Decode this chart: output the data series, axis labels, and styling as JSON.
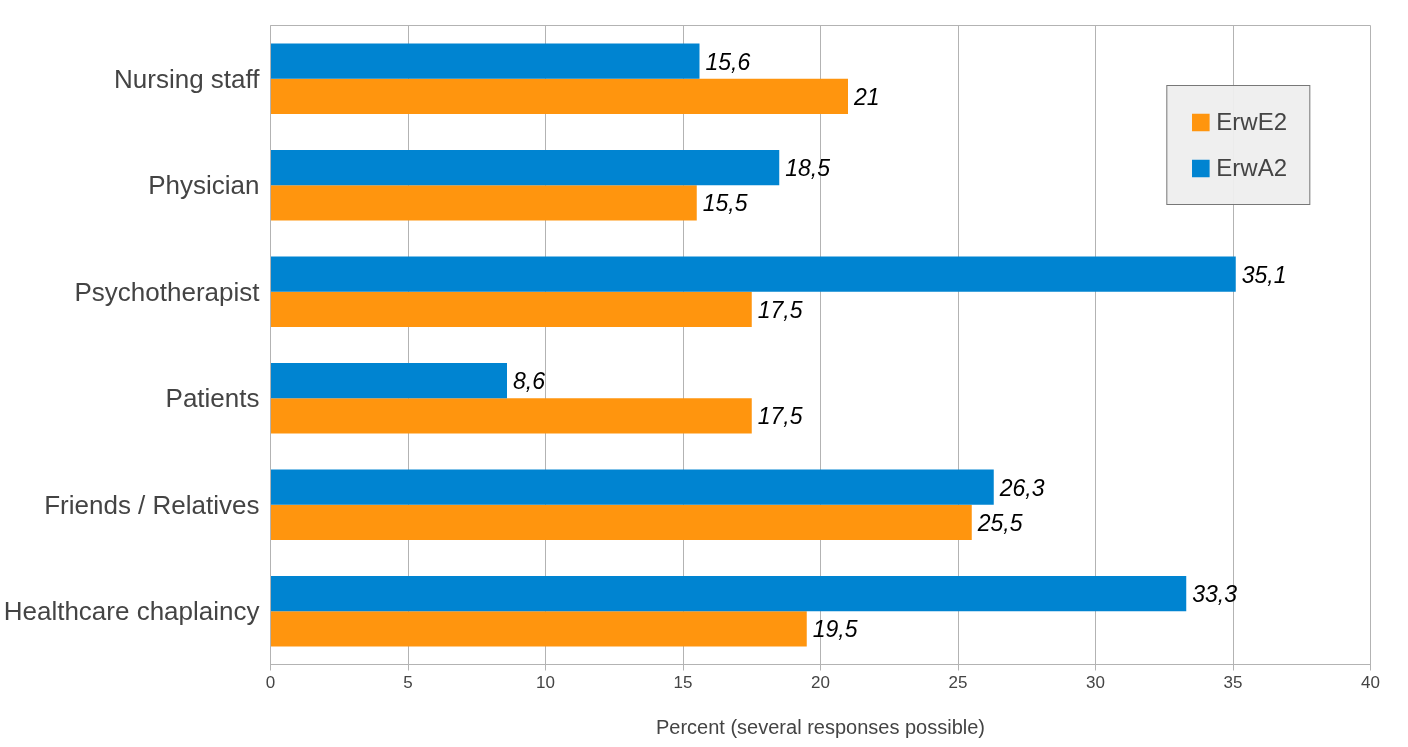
{
  "chart_data": {
    "type": "bar",
    "orientation": "horizontal",
    "xlabel": "Percent (several responses possible)",
    "categories": [
      "Nursing staff",
      "Physician",
      "Psychotherapist",
      "Patients",
      "Friends / Relatives",
      "Healthcare chaplaincy"
    ],
    "series": [
      {
        "name": "ErwE2",
        "color": "#ff950e",
        "values": [
          21,
          15.5,
          17.5,
          17.5,
          25.5,
          19.5
        ],
        "value_labels": [
          "21",
          "15,5",
          "17,5",
          "17,5",
          "25,5",
          "19,5"
        ]
      },
      {
        "name": "ErwA2",
        "color": "#0084d1",
        "values": [
          15.6,
          18.5,
          35.1,
          8.6,
          26.3,
          33.3
        ],
        "value_labels": [
          "15,6",
          "18,5",
          "35,1",
          "8,6",
          "26,3",
          "33,3"
        ]
      }
    ],
    "xlim": [
      0,
      40
    ],
    "xticks": [
      0,
      5,
      10,
      15,
      20,
      25,
      30,
      35,
      40
    ],
    "grid": "x",
    "legend": "top right"
  }
}
